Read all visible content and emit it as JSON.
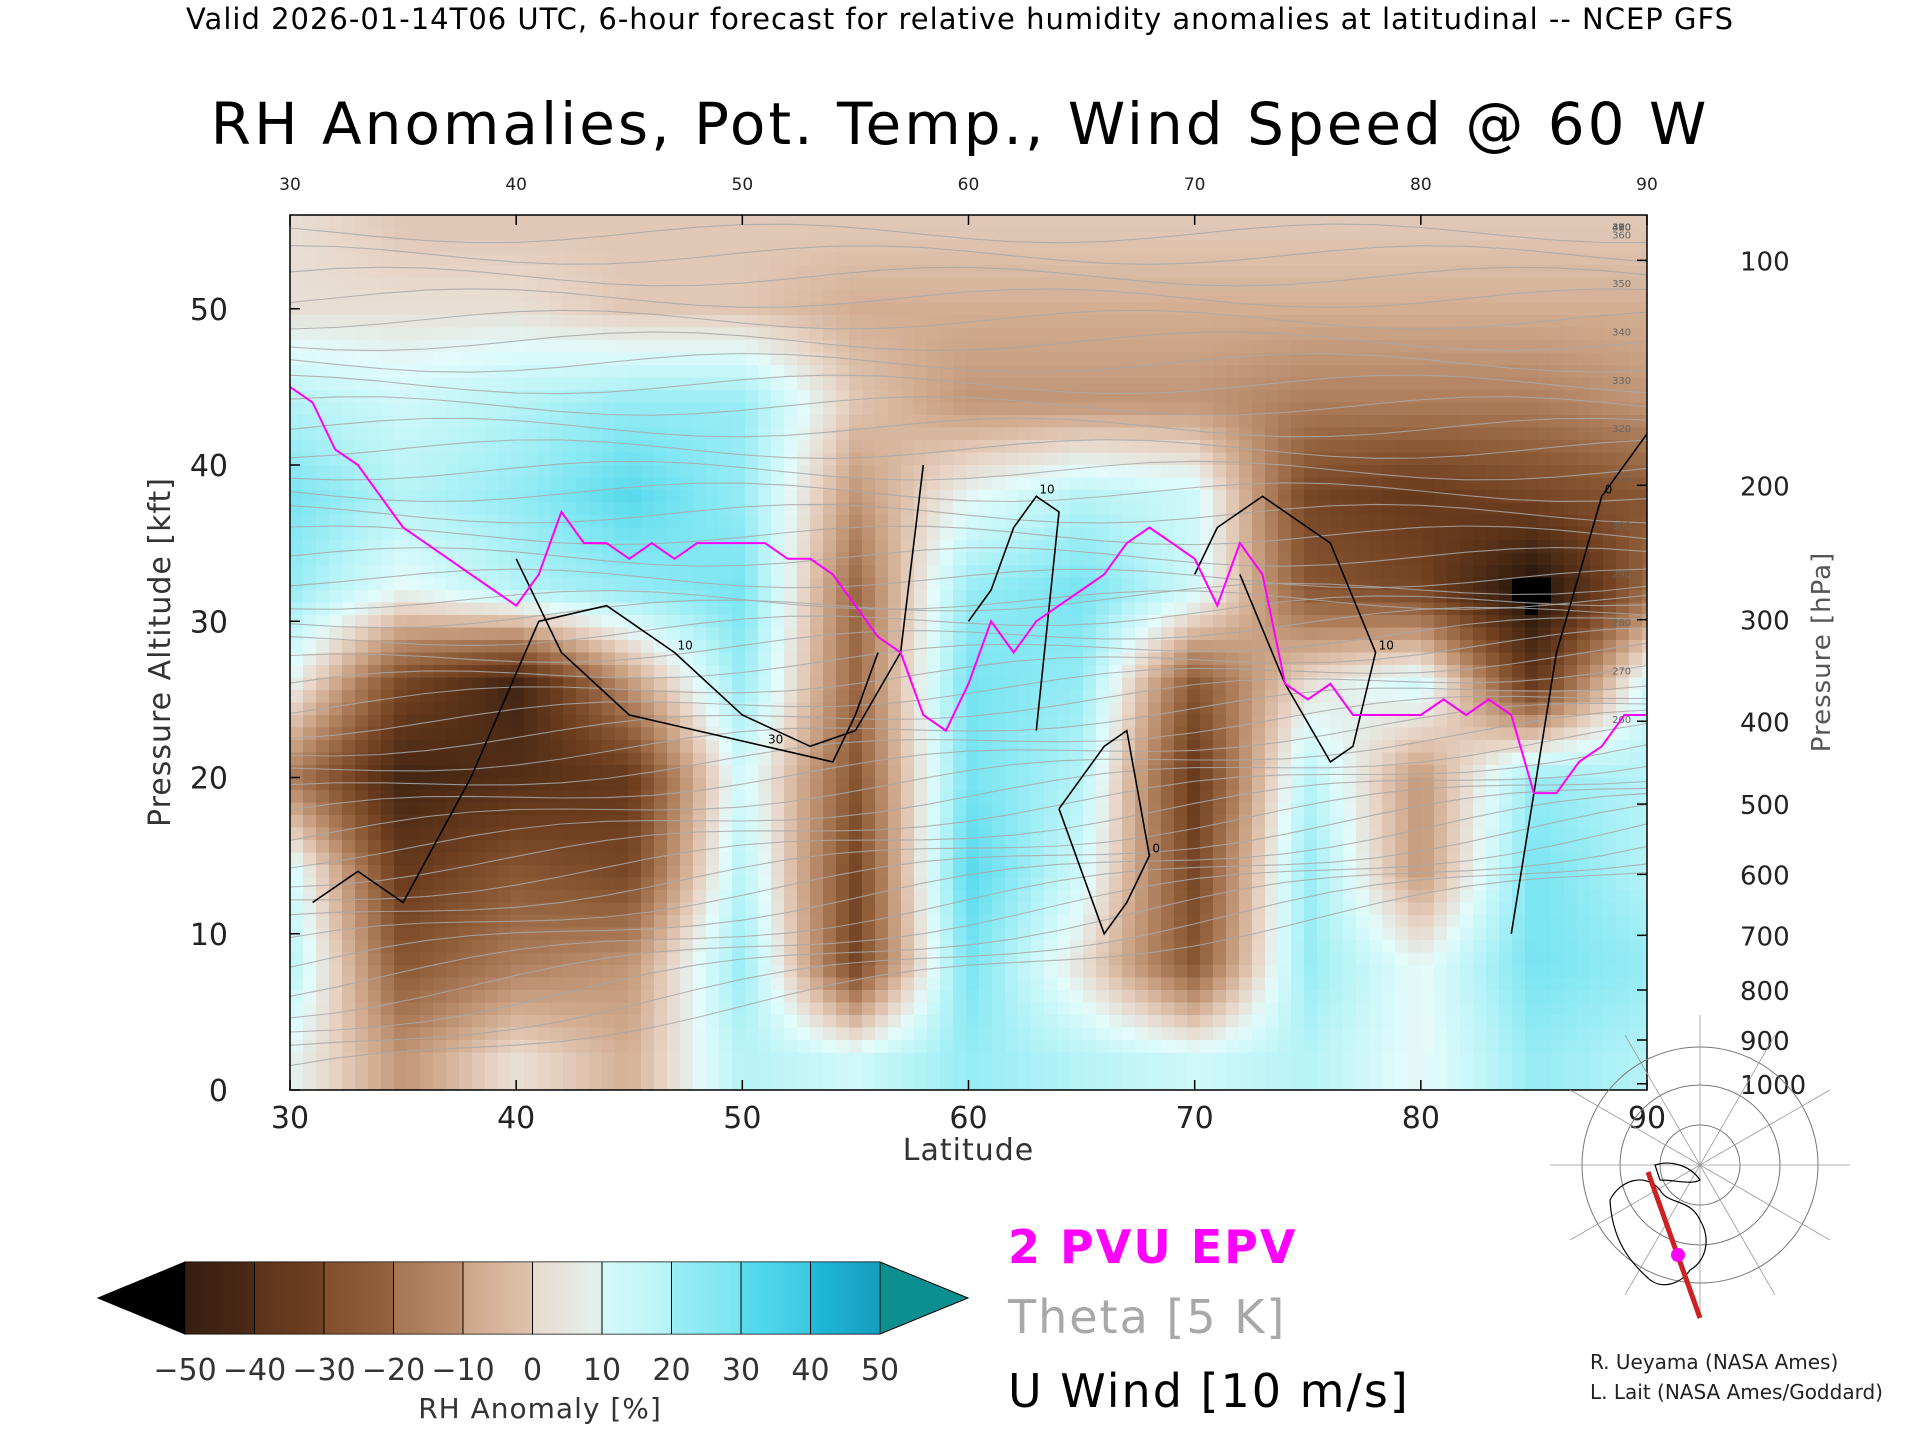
{
  "header": {
    "line": "Valid 2026-01-14T06 UTC, 6-hour forecast for relative humidity anomalies at latitudinal -- NCEP GFS"
  },
  "chart_data": {
    "type": "heatmap",
    "title": "RH Anomalies, Pot. Temp., Wind Speed @ 60 W",
    "xlabel": "Latitude",
    "ylabel_left": "Pressure Altitude [kft]",
    "ylabel_right": "Pressure [hPa]",
    "xlim": [
      30,
      90
    ],
    "ylim_kft": [
      0,
      56
    ],
    "x_ticks": [
      30,
      40,
      50,
      60,
      70,
      80,
      90
    ],
    "y_ticks_kft": [
      0,
      10,
      20,
      30,
      40,
      50
    ],
    "right_ticks_hpa": [
      {
        "hpa": "100",
        "kft": 53.1
      },
      {
        "hpa": "200",
        "kft": 38.7
      },
      {
        "hpa": "300",
        "kft": 30.1
      },
      {
        "hpa": "400",
        "kft": 23.6
      },
      {
        "hpa": "500",
        "kft": 18.3
      },
      {
        "hpa": "600",
        "kft": 13.8
      },
      {
        "hpa": "700",
        "kft": 9.9
      },
      {
        "hpa": "800",
        "kft": 6.4
      },
      {
        "hpa": "900",
        "kft": 3.2
      },
      {
        "hpa": "1000",
        "kft": 0.4
      }
    ],
    "colorbar": {
      "label": "RH Anomaly [%]",
      "ticks": [
        "−50",
        "−40",
        "−30",
        "−20",
        "−10",
        "0",
        "10",
        "20",
        "30",
        "40",
        "50"
      ],
      "colors": [
        "#2e1a0e",
        "#4f2c16",
        "#6e3e1f",
        "#8d5a36",
        "#ad7d5b",
        "#cfa88b",
        "#e8d4c6",
        "#e3fbfb",
        "#b6f3f7",
        "#7fe6f2",
        "#48d4ea",
        "#1cb3d6",
        "#0a86a8"
      ],
      "under_color": "#000000",
      "over_color": "#0e8f8f"
    },
    "rh_anomaly_grid": {
      "x": [
        30,
        35,
        40,
        45,
        50,
        55,
        60,
        65,
        70,
        75,
        80,
        85,
        90
      ],
      "y_kft": [
        2,
        8,
        14,
        20,
        26,
        32,
        38,
        44,
        50,
        55
      ],
      "values": [
        [
          10,
          -10,
          5,
          -5,
          20,
          15,
          25,
          20,
          15,
          20,
          10,
          25,
          20
        ],
        [
          20,
          -25,
          -15,
          -10,
          25,
          -30,
          30,
          5,
          -25,
          25,
          10,
          30,
          25
        ],
        [
          15,
          -35,
          -25,
          -30,
          20,
          -30,
          35,
          15,
          -30,
          25,
          -10,
          30,
          20
        ],
        [
          -15,
          -45,
          -40,
          -35,
          15,
          -25,
          30,
          20,
          -35,
          20,
          -10,
          25,
          20
        ],
        [
          10,
          -30,
          -45,
          -10,
          25,
          -20,
          30,
          25,
          -25,
          5,
          15,
          -35,
          15
        ],
        [
          25,
          10,
          20,
          25,
          30,
          -20,
          25,
          30,
          15,
          -25,
          -30,
          -55,
          -20
        ],
        [
          30,
          20,
          25,
          35,
          25,
          -10,
          10,
          20,
          15,
          -30,
          -35,
          -30,
          -25
        ],
        [
          20,
          15,
          20,
          25,
          25,
          0,
          -10,
          -10,
          -10,
          -15,
          -15,
          -15,
          -10
        ],
        [
          5,
          5,
          5,
          0,
          0,
          -5,
          -5,
          -5,
          -5,
          -5,
          -5,
          -5,
          -5
        ],
        [
          5,
          0,
          0,
          0,
          0,
          0,
          0,
          0,
          0,
          0,
          0,
          0,
          0
        ]
      ]
    },
    "theta_levels_k": [
      "260",
      "270",
      "280",
      "290",
      "300",
      "310",
      "320",
      "330",
      "340",
      "350",
      "360",
      "370",
      "380",
      "390",
      "400",
      "410",
      "420"
    ],
    "epv_2pvu_line": {
      "lat": [
        30,
        31,
        32,
        33,
        35,
        36,
        38,
        39,
        40,
        41,
        42,
        43,
        44,
        45,
        46,
        47,
        48,
        49,
        50,
        51,
        52,
        53,
        54,
        55,
        56,
        57,
        58,
        59,
        60,
        61,
        62,
        63,
        64,
        65,
        66,
        67,
        68,
        69,
        70,
        71,
        72,
        73,
        74,
        75,
        76,
        77,
        78,
        79,
        80,
        81,
        82,
        83,
        84,
        85,
        86,
        87,
        88,
        89,
        90
      ],
      "kft": [
        45,
        44,
        41,
        40,
        36,
        35,
        33,
        32,
        31,
        33,
        37,
        35,
        35,
        34,
        35,
        34,
        35,
        35,
        35,
        35,
        34,
        34,
        33,
        31,
        29,
        28,
        24,
        23,
        26,
        30,
        28,
        30,
        31,
        32,
        33,
        35,
        36,
        35,
        34,
        31,
        35,
        33,
        26,
        25,
        26,
        24,
        24,
        24,
        24,
        25,
        24,
        25,
        24,
        19,
        19,
        21,
        22,
        24,
        24
      ]
    },
    "u_wind_contours": [
      {
        "label": "10",
        "lat": [
          31,
          33,
          35,
          38,
          41,
          44,
          47,
          50,
          53,
          55,
          57,
          58
        ],
        "kft": [
          12,
          14,
          12,
          20,
          30,
          31,
          28,
          24,
          22,
          23,
          28,
          40
        ]
      },
      {
        "label": "30",
        "lat": [
          40,
          42,
          45,
          48,
          51,
          54,
          55,
          56
        ],
        "kft": [
          34,
          28,
          24,
          23,
          22,
          21,
          24,
          28
        ]
      },
      {
        "label": "10",
        "lat": [
          60,
          61,
          62,
          63,
          64,
          63
        ],
        "kft": [
          30,
          32,
          36,
          38,
          37,
          23
        ]
      },
      {
        "label": "0",
        "lat": [
          64,
          66,
          67,
          68,
          67,
          66,
          64
        ],
        "kft": [
          18,
          22,
          23,
          15,
          12,
          10,
          18
        ]
      },
      {
        "label": "10",
        "lat": [
          70,
          71,
          73,
          76,
          78,
          77,
          76,
          74,
          72
        ],
        "kft": [
          33,
          36,
          38,
          35,
          28,
          22,
          21,
          26,
          33
        ]
      },
      {
        "label": "0",
        "lat": [
          84,
          86,
          88,
          90
        ],
        "kft": [
          10,
          28,
          38,
          42
        ]
      }
    ],
    "wind_speed_labels": [
      "0",
      "10",
      "30"
    ]
  },
  "legend": {
    "epv": "2 PVU EPV",
    "theta": "Theta [5 K]",
    "wind": "U Wind [10 m/s]",
    "epv_color": "#ff00ff",
    "theta_color": "#a8a8a8"
  },
  "credits": {
    "line1": "R. Ueyama (NASA Ames)",
    "line2": "L. Lait (NASA Ames/Goddard)"
  },
  "inset_map": {
    "icon": "polar-stereographic-map-icon",
    "section_line_color": "#cc2222",
    "marker_color": "#ff00ff"
  }
}
